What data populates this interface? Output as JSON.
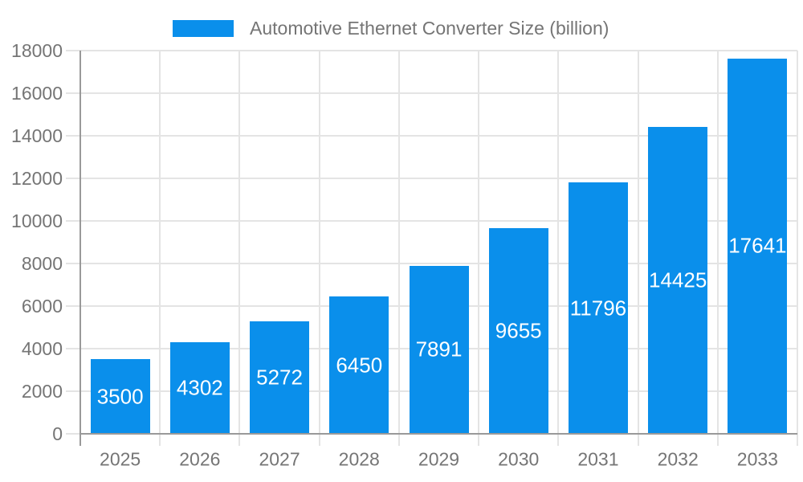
{
  "legend": {
    "label": "Automotive Ethernet Converter Size (billion)",
    "position": "top"
  },
  "chart_data": {
    "type": "bar",
    "title": "Automotive Ethernet Converter Size (billion)",
    "series_name": "Automotive Ethernet Converter Size (billion)",
    "categories": [
      "2025",
      "2026",
      "2027",
      "2028",
      "2029",
      "2030",
      "2031",
      "2032",
      "2033"
    ],
    "values": [
      3500,
      4302,
      5272,
      6450,
      7891,
      9655,
      11796,
      14425,
      17641
    ],
    "xlabel": "",
    "ylabel": "",
    "ylim": [
      0,
      18000
    ],
    "ytick_step": 2000,
    "ytick_labels": [
      "0",
      "2000",
      "4000",
      "6000",
      "8000",
      "10000",
      "12000",
      "14000",
      "16000",
      "18000"
    ],
    "grid": true,
    "legend_position": "top",
    "bar_labels_visible": true,
    "colors": {
      "bar": "#0a8feb",
      "bar_label": "#ffffff",
      "axis_text": "#757575",
      "gridline": "#e4e4e4",
      "axis_line": "#999999",
      "background": "#ffffff"
    }
  }
}
